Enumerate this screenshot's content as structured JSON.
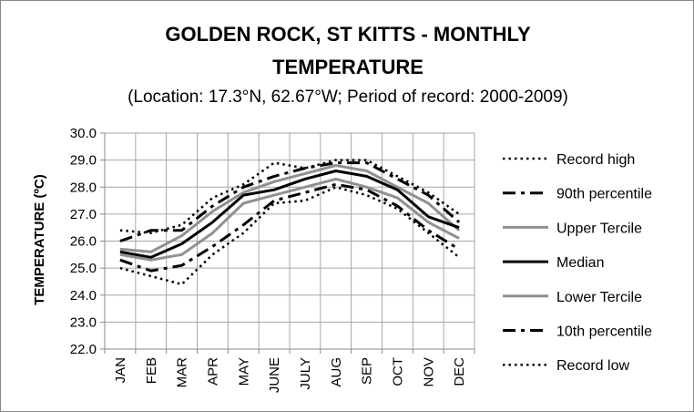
{
  "chart_data": {
    "type": "line",
    "title_line1": "GOLDEN ROCK, ST KITTS - MONTHLY",
    "title_line2": "TEMPERATURE",
    "subtitle": "(Location: 17.3°N, 62.67°W; Period of record: 2000-2009)",
    "xlabel": "",
    "ylabel": "TEMPERATURE (ºC)",
    "ylim": [
      22.0,
      30.0
    ],
    "ytick_step": 1.0,
    "yticks": [
      "22.0",
      "23.0",
      "24.0",
      "25.0",
      "26.0",
      "27.0",
      "28.0",
      "29.0",
      "30.0"
    ],
    "grid": true,
    "legend_position": "right",
    "categories": [
      "JAN",
      "FEB",
      "MAR",
      "APR",
      "MAY",
      "JUNE",
      "JULY",
      "AUG",
      "SEP",
      "OCT",
      "NOV",
      "DEC"
    ],
    "series": [
      {
        "name": "Record high",
        "style": "dotted",
        "color": "#000000",
        "values": [
          26.4,
          26.3,
          26.6,
          27.6,
          28.1,
          28.9,
          28.7,
          29.0,
          29.0,
          28.4,
          27.8,
          27.0
        ]
      },
      {
        "name": "90th percentile",
        "style": "dashdot",
        "color": "#000000",
        "values": [
          26.0,
          26.4,
          26.4,
          27.3,
          28.0,
          28.4,
          28.7,
          28.9,
          28.9,
          28.3,
          27.7,
          26.7
        ]
      },
      {
        "name": "Upper Tercile",
        "style": "solid",
        "color": "#909090",
        "values": [
          25.7,
          25.6,
          26.2,
          27.1,
          27.8,
          28.2,
          28.5,
          28.8,
          28.6,
          28.0,
          27.4,
          26.4
        ]
      },
      {
        "name": "Median",
        "style": "solid",
        "color": "#000000",
        "values": [
          25.6,
          25.4,
          25.9,
          26.7,
          27.7,
          27.9,
          28.3,
          28.6,
          28.4,
          27.9,
          26.9,
          26.5
        ]
      },
      {
        "name": "Lower Tercile",
        "style": "solid",
        "color": "#909090",
        "values": [
          25.5,
          25.3,
          25.5,
          26.3,
          27.4,
          27.7,
          28.0,
          28.3,
          28.0,
          27.6,
          26.7,
          26.1
        ]
      },
      {
        "name": "10th percentile",
        "style": "dashdot",
        "color": "#000000",
        "values": [
          25.3,
          24.9,
          25.1,
          25.8,
          26.6,
          27.5,
          27.8,
          28.1,
          27.9,
          27.3,
          26.4,
          25.7
        ]
      },
      {
        "name": "Record low",
        "style": "dotted",
        "color": "#000000",
        "values": [
          25.0,
          24.7,
          24.4,
          25.5,
          26.3,
          27.4,
          27.5,
          28.0,
          27.7,
          27.2,
          26.3,
          25.4
        ]
      }
    ]
  }
}
